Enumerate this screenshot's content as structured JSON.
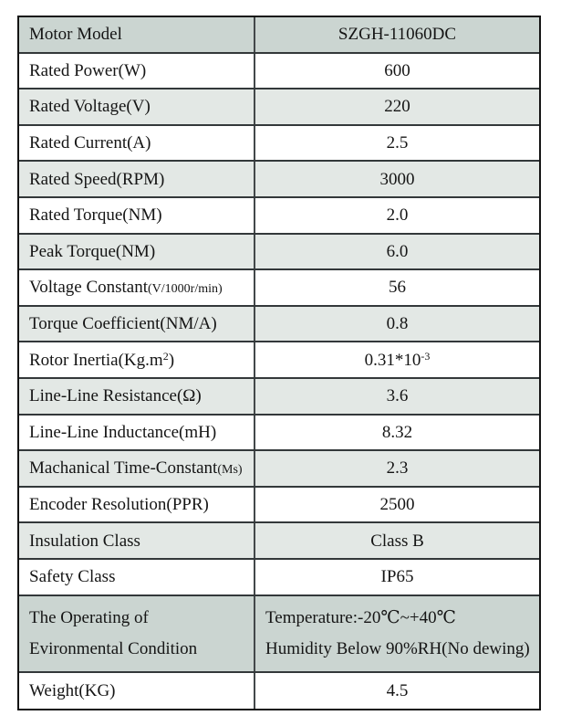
{
  "table": {
    "colors": {
      "dark_shade": "#cbd5d1",
      "light_shade": "#e3e8e5",
      "row_white": "#ffffff",
      "outer_border": "#141414",
      "inner_border": "#33383a",
      "text": "#151515"
    },
    "rows": [
      {
        "name": "motor-model",
        "shade": "dark",
        "tall": false,
        "value_align": "center",
        "label": [
          [
            {
              "text": "Motor Model"
            }
          ]
        ],
        "value": [
          [
            {
              "text": "SZGH-11060DC"
            }
          ]
        ]
      },
      {
        "name": "rated-power",
        "shade": "white",
        "tall": false,
        "value_align": "center",
        "label": [
          [
            {
              "text": "Rated Power(W)"
            }
          ]
        ],
        "value": [
          [
            {
              "text": "600"
            }
          ]
        ]
      },
      {
        "name": "rated-voltage",
        "shade": "light",
        "tall": false,
        "value_align": "center",
        "label": [
          [
            {
              "text": "Rated Voltage(V)"
            }
          ]
        ],
        "value": [
          [
            {
              "text": "220"
            }
          ]
        ]
      },
      {
        "name": "rated-current",
        "shade": "white",
        "tall": false,
        "value_align": "center",
        "label": [
          [
            {
              "text": "Rated Current(A)"
            }
          ]
        ],
        "value": [
          [
            {
              "text": "2.5"
            }
          ]
        ]
      },
      {
        "name": "rated-speed",
        "shade": "light",
        "tall": false,
        "value_align": "center",
        "label": [
          [
            {
              "text": "Rated Speed(RPM)"
            }
          ]
        ],
        "value": [
          [
            {
              "text": "3000"
            }
          ]
        ]
      },
      {
        "name": "rated-torque",
        "shade": "white",
        "tall": false,
        "value_align": "center",
        "label": [
          [
            {
              "text": "Rated Torque(NM)"
            }
          ]
        ],
        "value": [
          [
            {
              "text": "2.0"
            }
          ]
        ]
      },
      {
        "name": "peak-torque",
        "shade": "light",
        "tall": false,
        "value_align": "center",
        "label": [
          [
            {
              "text": "Peak Torque(NM)"
            }
          ]
        ],
        "value": [
          [
            {
              "text": "6.0"
            }
          ]
        ]
      },
      {
        "name": "voltage-constant",
        "shade": "white",
        "tall": false,
        "value_align": "center",
        "label": [
          [
            {
              "text": "Voltage Constant"
            },
            {
              "text": "(V/1000r/min)",
              "small": true
            }
          ]
        ],
        "value": [
          [
            {
              "text": "56"
            }
          ]
        ]
      },
      {
        "name": "torque-coefficient",
        "shade": "light",
        "tall": false,
        "value_align": "center",
        "label": [
          [
            {
              "text": "Torque Coefficient(NM/A)"
            }
          ]
        ],
        "value": [
          [
            {
              "text": "0.8"
            }
          ]
        ]
      },
      {
        "name": "rotor-inertia",
        "shade": "white",
        "tall": false,
        "value_align": "center",
        "label": [
          [
            {
              "text": "Rotor Inertia(Kg.m"
            },
            {
              "text": "2",
              "sup": true
            },
            {
              "text": ")"
            }
          ]
        ],
        "value": [
          [
            {
              "text": "0.31*10"
            },
            {
              "text": "-3",
              "sup": true
            }
          ]
        ]
      },
      {
        "name": "line-line-resistance",
        "shade": "light",
        "tall": false,
        "value_align": "center",
        "label": [
          [
            {
              "text": "Line-Line Resistance(Ω)"
            }
          ]
        ],
        "value": [
          [
            {
              "text": "3.6"
            }
          ]
        ]
      },
      {
        "name": "line-line-inductance",
        "shade": "white",
        "tall": false,
        "value_align": "center",
        "label": [
          [
            {
              "text": "Line-Line Inductance(mH)"
            }
          ]
        ],
        "value": [
          [
            {
              "text": "8.32"
            }
          ]
        ]
      },
      {
        "name": "mechanical-time-constant",
        "shade": "light",
        "tall": false,
        "value_align": "center",
        "label": [
          [
            {
              "text": "Machanical Time-Constant"
            },
            {
              "text": "(Ms)",
              "small": true
            }
          ]
        ],
        "value": [
          [
            {
              "text": "2.3"
            }
          ]
        ]
      },
      {
        "name": "encoder-resolution",
        "shade": "white",
        "tall": false,
        "value_align": "center",
        "label": [
          [
            {
              "text": "Encoder Resolution(PPR)"
            }
          ]
        ],
        "value": [
          [
            {
              "text": "2500"
            }
          ]
        ]
      },
      {
        "name": "insulation-class",
        "shade": "light",
        "tall": false,
        "value_align": "center",
        "label": [
          [
            {
              "text": "Insulation Class"
            }
          ]
        ],
        "value": [
          [
            {
              "text": "Class B"
            }
          ]
        ]
      },
      {
        "name": "safety-class",
        "shade": "white",
        "tall": false,
        "value_align": "center",
        "label": [
          [
            {
              "text": "Safety Class"
            }
          ]
        ],
        "value": [
          [
            {
              "text": "IP65"
            }
          ]
        ]
      },
      {
        "name": "environmental-condition",
        "shade": "dark",
        "tall": true,
        "value_align": "left",
        "label": [
          [
            {
              "text": "The Operating of"
            }
          ],
          [
            {
              "text": "Evironmental Condition"
            }
          ]
        ],
        "value": [
          [
            {
              "text": "Temperature:-20℃~+40℃"
            }
          ],
          [
            {
              "text": "Humidity Below 90%RH(No dewing)"
            }
          ]
        ]
      },
      {
        "name": "weight",
        "shade": "white",
        "tall": false,
        "value_align": "center",
        "label": [
          [
            {
              "text": "Weight(KG)"
            }
          ]
        ],
        "value": [
          [
            {
              "text": "4.5"
            }
          ]
        ]
      }
    ]
  }
}
